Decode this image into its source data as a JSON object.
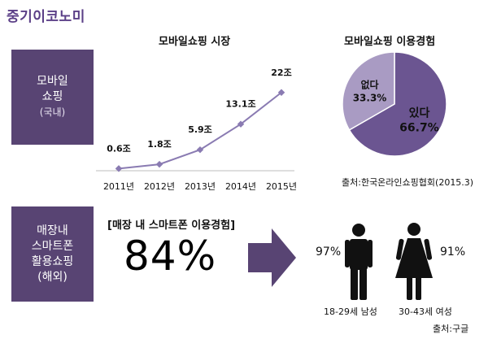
{
  "brand": "중기이코노미",
  "section1": {
    "line1": "모바일",
    "line2": "쇼핑",
    "line3": "(국내)"
  },
  "section2": {
    "line1": "매장내",
    "line2": "스마트폰",
    "line3": "활용쇼핑",
    "line4": "(해외)"
  },
  "colors": {
    "accent": "#584473",
    "pie_yes": "#6b5591",
    "pie_no": "#a99bc3",
    "line": "#8a7bb2"
  },
  "chart_data": [
    {
      "type": "line",
      "title": "모바일쇼핑 시장",
      "x": [
        "2011년",
        "2012년",
        "2013년",
        "2014년",
        "2015년"
      ],
      "values": [
        0.6,
        1.8,
        5.9,
        13.1,
        22
      ],
      "data_labels": [
        "0.6조",
        "1.8조",
        "5.9조",
        "13.1조",
        "22조"
      ],
      "ylim": [
        0,
        24
      ],
      "grid": false
    },
    {
      "type": "pie",
      "title": "모바일쇼핑 이용경험",
      "slices": [
        {
          "label": "있다",
          "value": 66.7,
          "display": "66.7%"
        },
        {
          "label": "없다",
          "value": 33.3,
          "display": "33.3%"
        }
      ],
      "source": "출처:한국온라인쇼핑협회(2015.3)"
    },
    {
      "type": "bar",
      "title": "[매장 내 스마트폰 이용경험]",
      "headline": "84%",
      "categories": [
        "18-29세 남성",
        "30-43세 여성"
      ],
      "values": [
        97,
        91
      ],
      "display": [
        "97%",
        "91%"
      ],
      "source": "출처:구글"
    }
  ]
}
